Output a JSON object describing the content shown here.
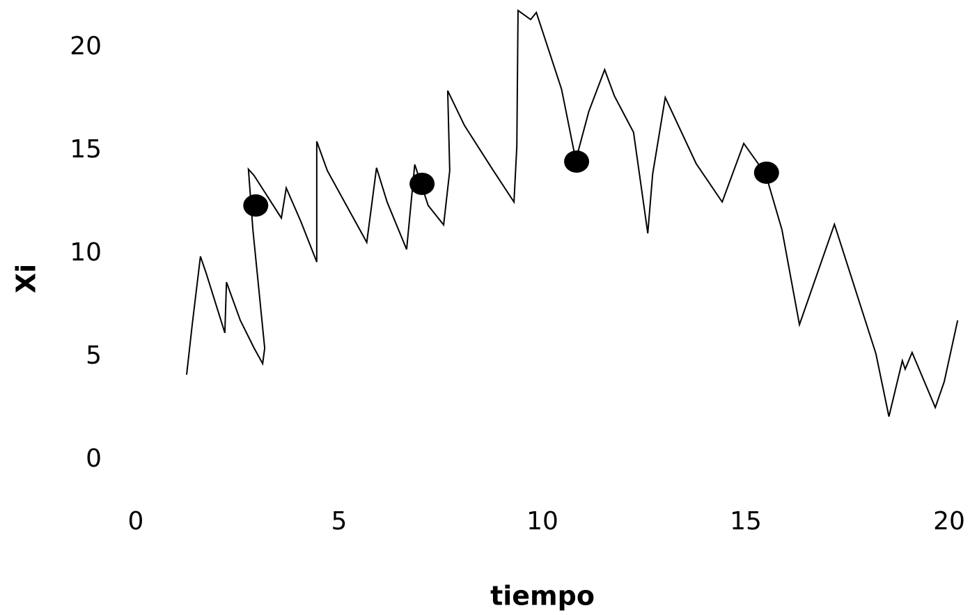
{
  "chart_data": {
    "type": "line",
    "x_label": "tiempo",
    "y_label": "Xi",
    "xlim": [
      0,
      20
    ],
    "ylim": [
      0,
      20
    ],
    "xticks": [
      0,
      5,
      10,
      15,
      20
    ],
    "yticks": [
      0,
      5,
      10,
      15,
      20
    ],
    "grid": false,
    "line": {
      "color": "#000000",
      "x": [
        1.25,
        1.39,
        1.59,
        1.73,
        2.19,
        2.23,
        2.57,
        2.91,
        3.12,
        3.17,
        2.88,
        2.77,
        2.91,
        3.58,
        3.7,
        4.06,
        4.45,
        4.45,
        4.71,
        5.68,
        5.92,
        6.18,
        6.66,
        6.86,
        7.19,
        7.57,
        7.72,
        7.67,
        8.08,
        8.77,
        9.3,
        9.37,
        9.4,
        9.71,
        9.85,
        10.47,
        10.82,
        11.14,
        11.53,
        11.77,
        12.24,
        12.59,
        12.71,
        13.02,
        13.78,
        14.42,
        14.95,
        15.49,
        15.89,
        16.32,
        17.18,
        18.2,
        18.52,
        18.85,
        18.92,
        19.09,
        19.66,
        19.88,
        20.21
      ],
      "values": [
        4.12,
        6.59,
        9.86,
        9.05,
        6.15,
        8.61,
        6.76,
        5.41,
        4.66,
        5.41,
        11.15,
        14.09,
        13.78,
        11.72,
        13.18,
        11.55,
        9.59,
        15.44,
        14.02,
        10.54,
        14.16,
        12.5,
        10.2,
        14.32,
        12.33,
        11.39,
        14.02,
        17.9,
        16.22,
        14.09,
        12.5,
        15.2,
        21.79,
        21.35,
        21.69,
        17.97,
        14.53,
        16.89,
        18.92,
        17.64,
        15.88,
        10.98,
        13.85,
        17.57,
        14.36,
        12.5,
        15.34,
        13.85,
        11.15,
        6.55,
        11.42,
        5.14,
        2.09,
        4.8,
        4.39,
        5.2,
        2.53,
        3.78,
        6.76
      ]
    },
    "points": {
      "color": "#000000",
      "x": [
        2.95,
        7.04,
        10.84,
        15.51
      ],
      "values": [
        12.33,
        13.38,
        14.46,
        13.92
      ]
    }
  }
}
